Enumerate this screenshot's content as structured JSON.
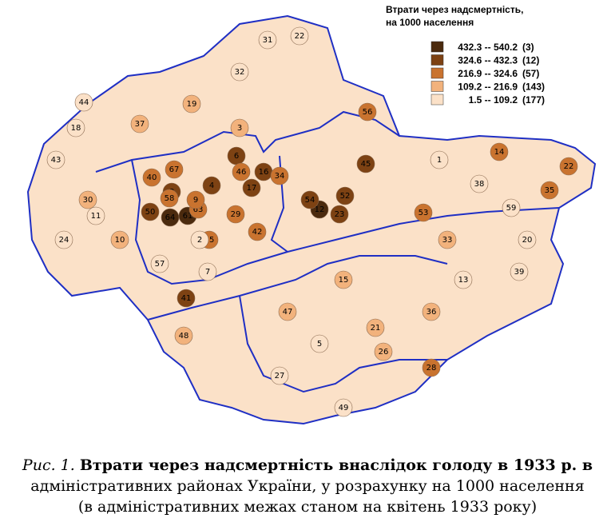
{
  "legend": {
    "title": [
      "Втрати через надсмертність,",
      "на 1000 населення"
    ],
    "classes": [
      {
        "range": "432.3 -- 540.2",
        "count": "(3)",
        "color": "#4b2a0e"
      },
      {
        "range": "324.6 -- 432.3",
        "count": "(12)",
        "color": "#7d4213"
      },
      {
        "range": "216.9 -- 324.6",
        "count": "(57)",
        "color": "#c9732f"
      },
      {
        "range": "109.2 -- 216.9",
        "count": "(143)",
        "color": "#f2b27c"
      },
      {
        "range": "1.5 -- 109.2",
        "count": "(177)",
        "color": "#fbe1c8"
      }
    ]
  },
  "map": {
    "districts": [
      {
        "label": "64",
        "class": 0
      },
      {
        "label": "12",
        "class": 0
      },
      {
        "label": "61",
        "class": 0
      },
      {
        "label": "50",
        "class": 1
      },
      {
        "label": "8",
        "class": 1
      },
      {
        "label": "16",
        "class": 1
      },
      {
        "label": "52",
        "class": 1
      },
      {
        "label": "45",
        "class": 1
      },
      {
        "label": "41",
        "class": 1
      },
      {
        "label": "17",
        "class": 1
      },
      {
        "label": "6",
        "class": 1
      },
      {
        "label": "54",
        "class": 1
      },
      {
        "label": "23",
        "class": 1
      },
      {
        "label": "4",
        "class": 1
      },
      {
        "label": "46",
        "class": 2
      },
      {
        "label": "34",
        "class": 2
      },
      {
        "label": "40",
        "class": 2
      },
      {
        "label": "67",
        "class": 2
      },
      {
        "label": "58",
        "class": 2
      },
      {
        "label": "63",
        "class": 2
      },
      {
        "label": "29",
        "class": 2
      },
      {
        "label": "25",
        "class": 2
      },
      {
        "label": "53",
        "class": 2
      },
      {
        "label": "42",
        "class": 2
      },
      {
        "label": "35",
        "class": 2
      },
      {
        "label": "22",
        "class": 2
      },
      {
        "label": "14",
        "class": 2
      },
      {
        "label": "28",
        "class": 2
      },
      {
        "label": "56",
        "class": 2
      },
      {
        "label": "9",
        "class": 2
      },
      {
        "label": "30",
        "class": 3
      },
      {
        "label": "37",
        "class": 3
      },
      {
        "label": "19",
        "class": 3
      },
      {
        "label": "15",
        "class": 3
      },
      {
        "label": "33",
        "class": 3
      },
      {
        "label": "21",
        "class": 3
      },
      {
        "label": "3",
        "class": 3
      },
      {
        "label": "47",
        "class": 3
      },
      {
        "label": "26",
        "class": 3
      },
      {
        "label": "10",
        "class": 3
      },
      {
        "label": "36",
        "class": 3
      },
      {
        "label": "48",
        "class": 3
      },
      {
        "label": "31",
        "class": 4
      },
      {
        "label": "22",
        "class": 4
      },
      {
        "label": "32",
        "class": 4
      },
      {
        "label": "44",
        "class": 4
      },
      {
        "label": "18",
        "class": 4
      },
      {
        "label": "43",
        "class": 4
      },
      {
        "label": "11",
        "class": 4
      },
      {
        "label": "24",
        "class": 4
      },
      {
        "label": "7",
        "class": 4
      },
      {
        "label": "38",
        "class": 4
      },
      {
        "label": "59",
        "class": 4
      },
      {
        "label": "57",
        "class": 4
      },
      {
        "label": "39",
        "class": 4
      },
      {
        "label": "2",
        "class": 4
      },
      {
        "label": "13",
        "class": 4
      },
      {
        "label": "49",
        "class": 4
      },
      {
        "label": "27",
        "class": 4
      },
      {
        "label": "20",
        "class": 4
      },
      {
        "label": "5",
        "class": 4
      },
      {
        "label": "1",
        "class": 4
      }
    ]
  },
  "caption": {
    "label": "Рис. 1.",
    "line1": "Втрати через надсмертність внаслідок голоду в 1933 р. в",
    "line2": "адміністративних районах України, у розрахунку на 1000 населення",
    "line3": "(в адміністративних межах станом на квітень 1933 року)"
  }
}
